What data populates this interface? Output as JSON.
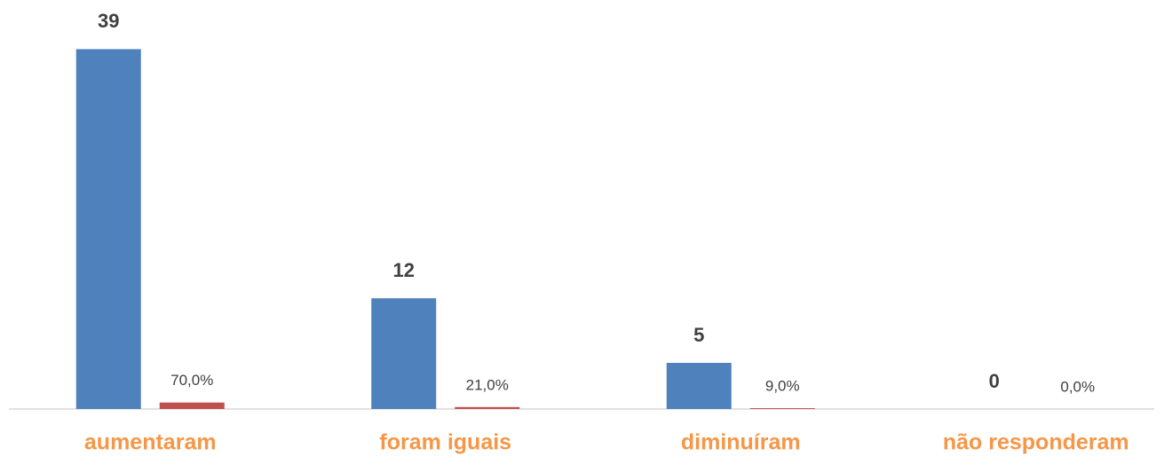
{
  "chart_data": {
    "type": "bar",
    "categories": [
      "aumentaram",
      "foram iguais",
      "diminuíram",
      "não responderam"
    ],
    "series": [
      {
        "color": "#4f81bd",
        "values": [
          39,
          12,
          5,
          0
        ]
      },
      {
        "color": "#c0504d",
        "values": [
          0.7,
          0.21,
          0.09,
          0
        ],
        "value_labels": [
          "70,0%",
          "21,0%",
          "9,0%",
          "0,0%"
        ]
      }
    ],
    "ylim": [
      0,
      40
    ],
    "category_color": "#f79646"
  }
}
